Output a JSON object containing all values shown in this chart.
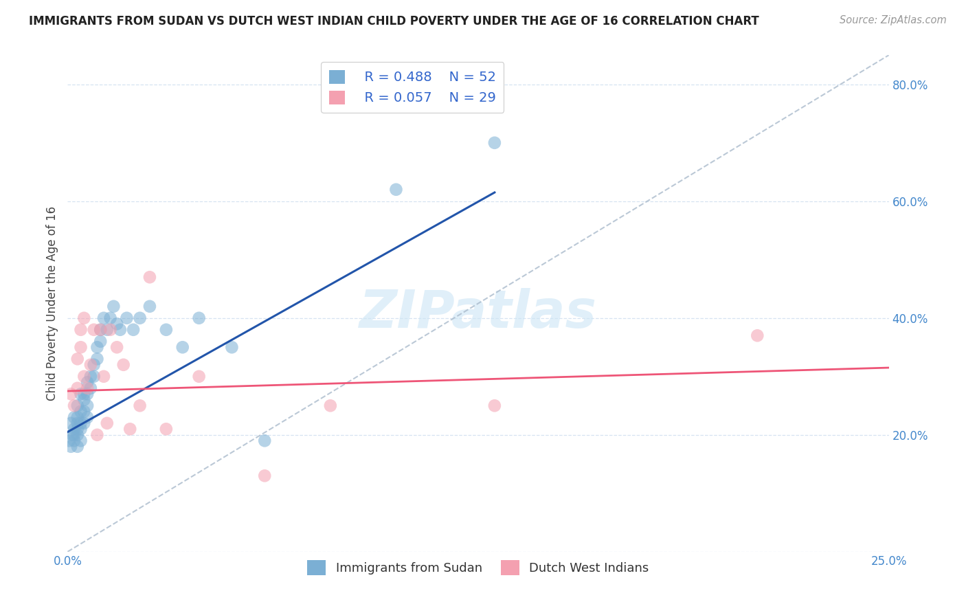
{
  "title": "IMMIGRANTS FROM SUDAN VS DUTCH WEST INDIAN CHILD POVERTY UNDER THE AGE OF 16 CORRELATION CHART",
  "source": "Source: ZipAtlas.com",
  "ylabel": "Child Poverty Under the Age of 16",
  "xlim": [
    0.0,
    0.25
  ],
  "ylim": [
    0.0,
    0.85
  ],
  "y_tick_vals": [
    0.0,
    0.2,
    0.4,
    0.6,
    0.8
  ],
  "y_tick_labels": [
    "",
    "20.0%",
    "40.0%",
    "60.0%",
    "80.0%"
  ],
  "x_tick_vals": [
    0.0,
    0.05,
    0.1,
    0.15,
    0.2,
    0.25
  ],
  "x_tick_labels": [
    "0.0%",
    "",
    "",
    "",
    "",
    "25.0%"
  ],
  "legend_r1": "R = 0.488",
  "legend_n1": "N = 52",
  "legend_r2": "R = 0.057",
  "legend_n2": "N = 29",
  "color_blue": "#7BAFD4",
  "color_pink": "#F4A0B0",
  "color_blue_line": "#2255AA",
  "color_pink_line": "#EE5577",
  "watermark": "ZIPatlas",
  "sudan_x": [
    0.0005,
    0.001,
    0.001,
    0.0015,
    0.002,
    0.002,
    0.002,
    0.002,
    0.003,
    0.003,
    0.003,
    0.003,
    0.003,
    0.003,
    0.004,
    0.004,
    0.004,
    0.004,
    0.004,
    0.005,
    0.005,
    0.005,
    0.005,
    0.006,
    0.006,
    0.006,
    0.006,
    0.007,
    0.007,
    0.008,
    0.008,
    0.009,
    0.009,
    0.01,
    0.01,
    0.011,
    0.012,
    0.013,
    0.014,
    0.015,
    0.016,
    0.018,
    0.02,
    0.022,
    0.025,
    0.03,
    0.035,
    0.04,
    0.05,
    0.06,
    0.1,
    0.13
  ],
  "sudan_y": [
    0.19,
    0.22,
    0.18,
    0.2,
    0.23,
    0.21,
    0.19,
    0.2,
    0.25,
    0.23,
    0.21,
    0.2,
    0.22,
    0.18,
    0.27,
    0.24,
    0.22,
    0.21,
    0.19,
    0.27,
    0.26,
    0.24,
    0.22,
    0.29,
    0.27,
    0.25,
    0.23,
    0.3,
    0.28,
    0.32,
    0.3,
    0.35,
    0.33,
    0.38,
    0.36,
    0.4,
    0.38,
    0.4,
    0.42,
    0.39,
    0.38,
    0.4,
    0.38,
    0.4,
    0.42,
    0.38,
    0.35,
    0.4,
    0.35,
    0.19,
    0.62,
    0.7
  ],
  "dutch_x": [
    0.001,
    0.002,
    0.003,
    0.003,
    0.004,
    0.004,
    0.005,
    0.005,
    0.006,
    0.007,
    0.008,
    0.009,
    0.01,
    0.011,
    0.012,
    0.013,
    0.015,
    0.017,
    0.019,
    0.022,
    0.025,
    0.03,
    0.04,
    0.06,
    0.08,
    0.13,
    0.21
  ],
  "dutch_y": [
    0.27,
    0.25,
    0.33,
    0.28,
    0.38,
    0.35,
    0.4,
    0.3,
    0.28,
    0.32,
    0.38,
    0.2,
    0.38,
    0.3,
    0.22,
    0.38,
    0.35,
    0.32,
    0.21,
    0.25,
    0.47,
    0.21,
    0.3,
    0.13,
    0.25,
    0.25,
    0.37
  ],
  "sudan_line_x": [
    0.0,
    0.13
  ],
  "sudan_line_y": [
    0.205,
    0.615
  ],
  "dutch_line_x": [
    0.0,
    0.25
  ],
  "dutch_line_y": [
    0.275,
    0.315
  ],
  "dash_line_x": [
    0.0,
    0.25
  ],
  "dash_line_y": [
    0.0,
    0.85
  ]
}
